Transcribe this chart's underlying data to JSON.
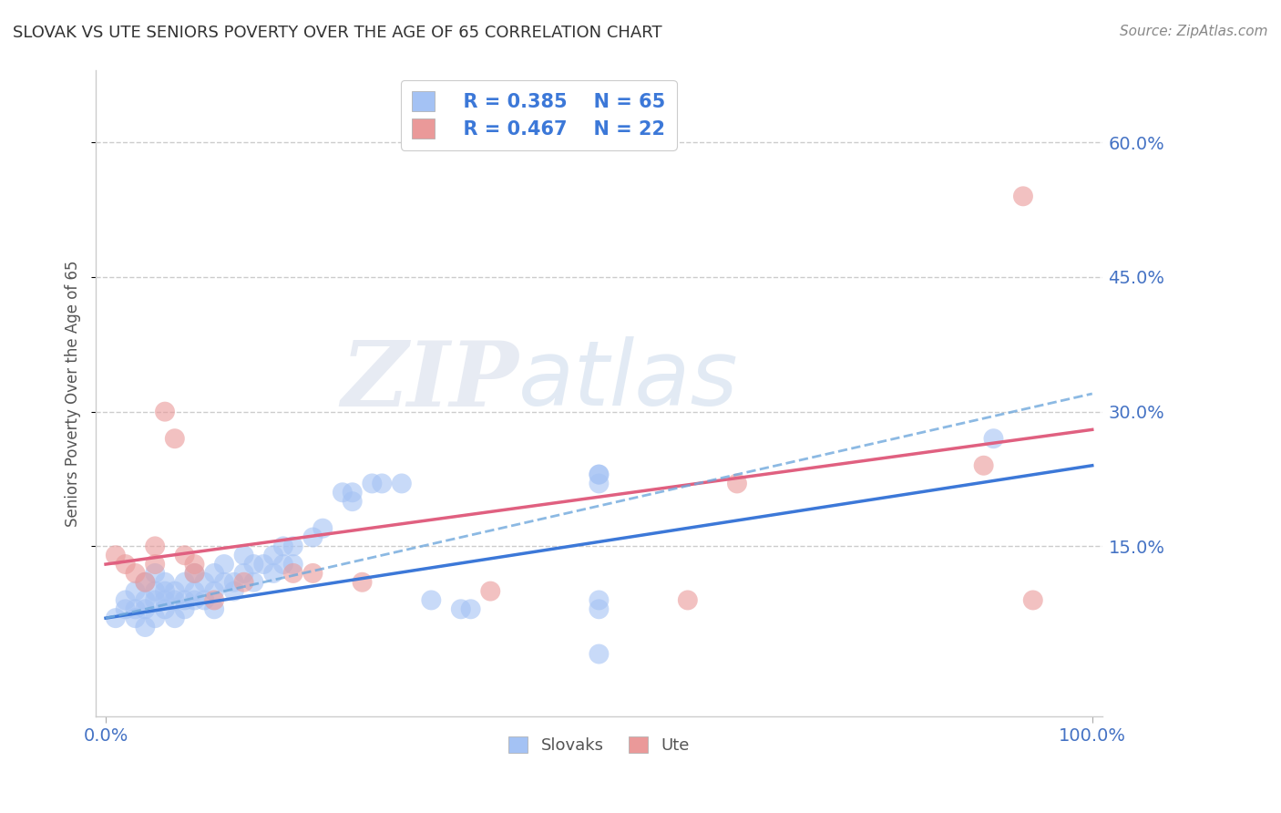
{
  "title": "SLOVAK VS UTE SENIORS POVERTY OVER THE AGE OF 65 CORRELATION CHART",
  "source_text": "Source: ZipAtlas.com",
  "ylabel": "Seniors Poverty Over the Age of 65",
  "xlim": [
    -0.01,
    1.01
  ],
  "ylim": [
    -0.04,
    0.68
  ],
  "yticks": [
    0.15,
    0.3,
    0.45,
    0.6
  ],
  "ytick_labels": [
    "15.0%",
    "30.0%",
    "45.0%",
    "60.0%"
  ],
  "grid_color": "#cccccc",
  "background_color": "#ffffff",
  "title_color": "#333333",
  "axis_label_color": "#555555",
  "tick_color": "#4472c4",
  "legend_r1": "R = 0.385",
  "legend_n1": "N = 65",
  "legend_r2": "R = 0.467",
  "legend_n2": "N = 22",
  "slovak_color": "#a4c2f4",
  "ute_color": "#ea9999",
  "slovak_line_color": "#3c78d8",
  "ute_line_color": "#e06080",
  "slovak_dashed_color": "#6fa8dc",
  "slovak_dots": [
    [
      0.01,
      0.07
    ],
    [
      0.02,
      0.08
    ],
    [
      0.02,
      0.09
    ],
    [
      0.03,
      0.07
    ],
    [
      0.03,
      0.08
    ],
    [
      0.03,
      0.1
    ],
    [
      0.04,
      0.06
    ],
    [
      0.04,
      0.08
    ],
    [
      0.04,
      0.09
    ],
    [
      0.04,
      0.11
    ],
    [
      0.05,
      0.07
    ],
    [
      0.05,
      0.09
    ],
    [
      0.05,
      0.1
    ],
    [
      0.05,
      0.12
    ],
    [
      0.06,
      0.08
    ],
    [
      0.06,
      0.09
    ],
    [
      0.06,
      0.1
    ],
    [
      0.06,
      0.11
    ],
    [
      0.07,
      0.07
    ],
    [
      0.07,
      0.09
    ],
    [
      0.07,
      0.1
    ],
    [
      0.08,
      0.08
    ],
    [
      0.08,
      0.09
    ],
    [
      0.08,
      0.11
    ],
    [
      0.09,
      0.09
    ],
    [
      0.09,
      0.1
    ],
    [
      0.09,
      0.12
    ],
    [
      0.1,
      0.09
    ],
    [
      0.1,
      0.11
    ],
    [
      0.11,
      0.08
    ],
    [
      0.11,
      0.1
    ],
    [
      0.11,
      0.12
    ],
    [
      0.12,
      0.11
    ],
    [
      0.12,
      0.13
    ],
    [
      0.13,
      0.1
    ],
    [
      0.13,
      0.11
    ],
    [
      0.14,
      0.12
    ],
    [
      0.14,
      0.14
    ],
    [
      0.15,
      0.11
    ],
    [
      0.15,
      0.13
    ],
    [
      0.16,
      0.13
    ],
    [
      0.17,
      0.12
    ],
    [
      0.17,
      0.14
    ],
    [
      0.18,
      0.13
    ],
    [
      0.18,
      0.15
    ],
    [
      0.19,
      0.13
    ],
    [
      0.19,
      0.15
    ],
    [
      0.21,
      0.16
    ],
    [
      0.22,
      0.17
    ],
    [
      0.24,
      0.21
    ],
    [
      0.25,
      0.2
    ],
    [
      0.25,
      0.21
    ],
    [
      0.27,
      0.22
    ],
    [
      0.28,
      0.22
    ],
    [
      0.3,
      0.22
    ],
    [
      0.33,
      0.09
    ],
    [
      0.36,
      0.08
    ],
    [
      0.37,
      0.08
    ],
    [
      0.5,
      0.03
    ],
    [
      0.5,
      0.22
    ],
    [
      0.5,
      0.23
    ],
    [
      0.5,
      0.23
    ],
    [
      0.5,
      0.08
    ],
    [
      0.5,
      0.09
    ],
    [
      0.9,
      0.27
    ]
  ],
  "ute_dots": [
    [
      0.01,
      0.14
    ],
    [
      0.02,
      0.13
    ],
    [
      0.03,
      0.12
    ],
    [
      0.04,
      0.11
    ],
    [
      0.05,
      0.13
    ],
    [
      0.05,
      0.15
    ],
    [
      0.06,
      0.3
    ],
    [
      0.07,
      0.27
    ],
    [
      0.08,
      0.14
    ],
    [
      0.09,
      0.12
    ],
    [
      0.09,
      0.13
    ],
    [
      0.11,
      0.09
    ],
    [
      0.14,
      0.11
    ],
    [
      0.19,
      0.12
    ],
    [
      0.21,
      0.12
    ],
    [
      0.26,
      0.11
    ],
    [
      0.39,
      0.1
    ],
    [
      0.59,
      0.09
    ],
    [
      0.64,
      0.22
    ],
    [
      0.89,
      0.24
    ],
    [
      0.93,
      0.54
    ],
    [
      0.94,
      0.09
    ]
  ],
  "slovak_trendline": [
    0.0,
    1.0,
    0.07,
    0.24
  ],
  "ute_trendline": [
    0.0,
    1.0,
    0.13,
    0.28
  ],
  "slovak_dashed_trendline": [
    0.0,
    1.0,
    0.07,
    0.32
  ]
}
